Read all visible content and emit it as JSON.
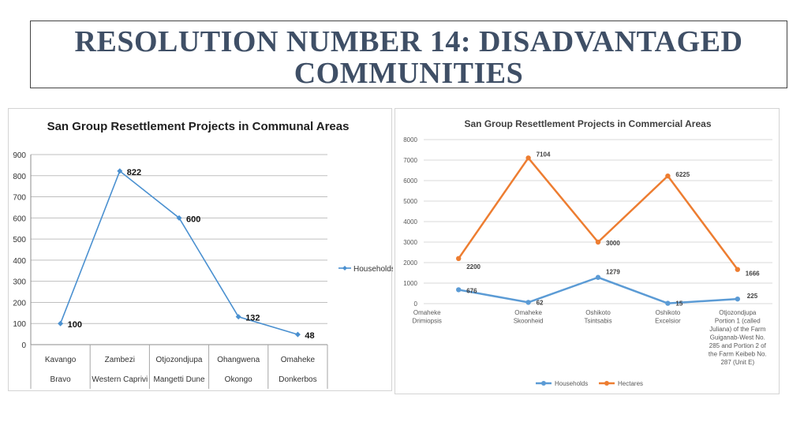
{
  "slide": {
    "title_line1": "RESOLUTION NUMBER 14: DISADVANTAGED",
    "title_line2": "COMMUNITIES"
  },
  "colors": {
    "title": "#3f4f66",
    "households_left": "#4a90d0",
    "households_right": "#5b9bd5",
    "hectares": "#ed7d31",
    "gridline": "#bfbfbf"
  },
  "chart_data": [
    {
      "type": "line",
      "title": "San Group Resettlement Projects in Communal Areas",
      "categories": [
        [
          "Kavango",
          "Bravo"
        ],
        [
          "Zambezi",
          "Western Caprivi"
        ],
        [
          "Otjozondjupa",
          "Mangetti Dune"
        ],
        [
          "Ohangwena",
          "Okongo"
        ],
        [
          "Omaheke",
          "Donkerbos"
        ]
      ],
      "series": [
        {
          "name": "Households",
          "values": [
            100,
            822,
            600,
            132,
            48
          ],
          "color": "#4a90d0"
        }
      ],
      "ylim": [
        0,
        900
      ],
      "yticks": [
        0,
        100,
        200,
        300,
        400,
        500,
        600,
        700,
        800,
        900
      ],
      "grid": true,
      "legend": "right",
      "data_labels": true
    },
    {
      "type": "line",
      "title": "San Group Resettlement Projects in Commercial Areas",
      "categories": [
        [
          "Omaheke",
          "Drimiopsis"
        ],
        [
          "Omaheke",
          "Skoonheid"
        ],
        [
          "Oshikoto",
          "Tsintsabis"
        ],
        [
          "Oshikoto",
          "Excelsior"
        ],
        [
          "Otjozondjupa",
          "Portion 1 (called",
          "Juliana) of the Farm",
          "Guiganab-West No.",
          "285 and Portion 2 of",
          "the Farm Keibeb No.",
          "287 (Unit E)"
        ]
      ],
      "series": [
        {
          "name": "Households",
          "values": [
            676,
            62,
            1279,
            15,
            225
          ],
          "color": "#5b9bd5"
        },
        {
          "name": "Hectares",
          "values": [
            2200,
            7104,
            3000,
            6225,
            1666
          ],
          "color": "#ed7d31"
        }
      ],
      "ylim": [
        0,
        8000
      ],
      "yticks": [
        0,
        1000,
        2000,
        3000,
        4000,
        5000,
        6000,
        7000,
        8000
      ],
      "grid": true,
      "legend": "bottom",
      "data_labels": true
    }
  ]
}
